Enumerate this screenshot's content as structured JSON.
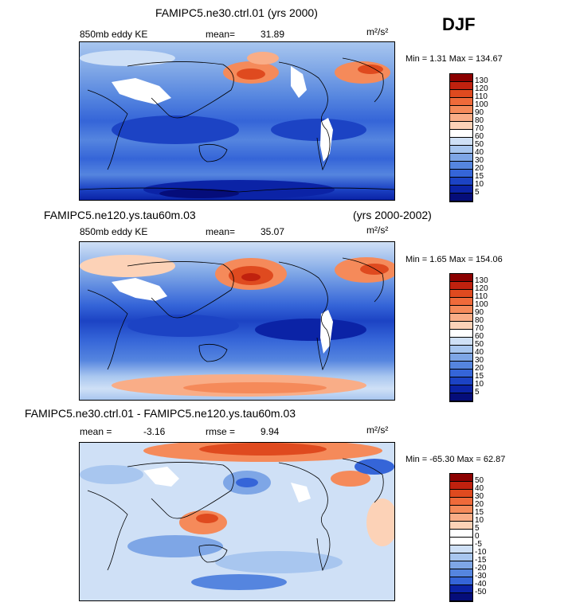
{
  "season": "DJF",
  "units": "m²/s²",
  "panels": [
    {
      "title": "FAMIPC5.ne30.ctrl.01 (yrs 2000)",
      "left_label": "850mb eddy KE",
      "mid_label": "mean=",
      "mid_value": "31.89",
      "min_max": "Min =   1.31 Max = 134.67",
      "levels": [
        "130",
        "120",
        "110",
        "100",
        "90",
        "80",
        "70",
        "60",
        "50",
        "40",
        "30",
        "20",
        "15",
        "10",
        "5"
      ],
      "colors": [
        "#8b0000",
        "#c0210e",
        "#df4a1f",
        "#ef6a3a",
        "#f58a5a",
        "#f9ad87",
        "#fcd2b7",
        "#ffffff",
        "#cfe0f6",
        "#a8c6ef",
        "#7ea6e6",
        "#5585df",
        "#3565d8",
        "#1c43c4",
        "#0b23a6",
        "#050d7a"
      ]
    },
    {
      "title_left": "FAMIPC5.ne120.ys.tau60m.03",
      "title_right": "(yrs 2000-2002)",
      "left_label": "850mb eddy KE",
      "mid_label": "mean=",
      "mid_value": "35.07",
      "min_max": "Min =   1.65 Max = 154.06",
      "levels": [
        "130",
        "120",
        "110",
        "100",
        "90",
        "80",
        "70",
        "60",
        "50",
        "40",
        "30",
        "20",
        "15",
        "10",
        "5"
      ],
      "colors": [
        "#8b0000",
        "#c0210e",
        "#df4a1f",
        "#ef6a3a",
        "#f58a5a",
        "#f9ad87",
        "#fcd2b7",
        "#ffffff",
        "#cfe0f6",
        "#a8c6ef",
        "#7ea6e6",
        "#5585df",
        "#3565d8",
        "#1c43c4",
        "#0b23a6",
        "#050d7a"
      ]
    },
    {
      "title": "FAMIPC5.ne30.ctrl.01 - FAMIPC5.ne120.ys.tau60m.03",
      "left_label": "mean =",
      "left_value": "-3.16",
      "mid_label": "rmse =",
      "mid_value": "9.94",
      "min_max": "Min = -65.30 Max =  62.87",
      "levels": [
        "50",
        "40",
        "30",
        "20",
        "15",
        "10",
        "5",
        "0",
        "-5",
        "-10",
        "-15",
        "-20",
        "-30",
        "-40",
        "-50"
      ],
      "colors": [
        "#8b0000",
        "#c0210e",
        "#df4a1f",
        "#ef6a3a",
        "#f58a5a",
        "#f9ad87",
        "#fcd2b7",
        "#ffffff",
        "#ffffff",
        "#cfe0f6",
        "#a8c6ef",
        "#7ea6e6",
        "#5585df",
        "#3565d8",
        "#0b23a6",
        "#050d7a"
      ]
    }
  ]
}
